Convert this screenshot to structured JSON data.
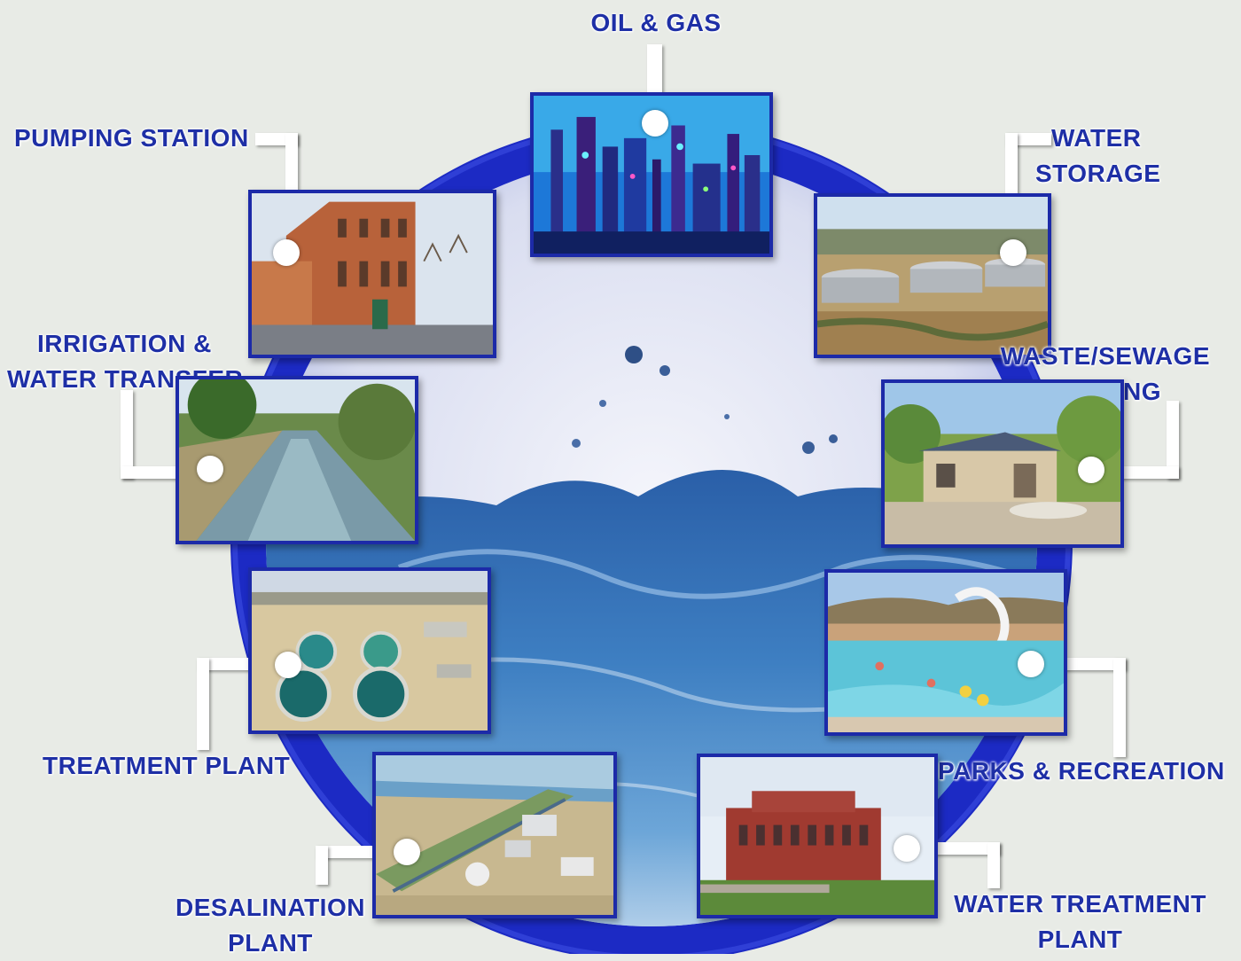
{
  "colors": {
    "background": "#e8ebe6",
    "ring": "#1c2ac4",
    "frame": "#1c2aa8",
    "label_text": "#1e2fa6",
    "connector": "#ffffff"
  },
  "nodes": [
    {
      "id": "oil-gas",
      "lines": [
        "OIL & GAS"
      ],
      "icon": "refinery-photo"
    },
    {
      "id": "water-storage",
      "lines": [
        "WATER",
        "STORAGE"
      ],
      "icon": "storage-tanks-photo"
    },
    {
      "id": "waste-sewage-pumping",
      "lines": [
        "WASTE/SEWAGE",
        "PUMPING"
      ],
      "icon": "pump-house-photo"
    },
    {
      "id": "parks-recreation",
      "lines": [
        "PARKS & RECREATION"
      ],
      "icon": "water-park-photo"
    },
    {
      "id": "water-treatment-plant",
      "lines": [
        "WATER TREATMENT",
        "PLANT"
      ],
      "icon": "brick-building-photo"
    },
    {
      "id": "desalination-plant",
      "lines": [
        "DESALINATION",
        "PLANT"
      ],
      "icon": "desalination-aerial-photo"
    },
    {
      "id": "treatment-plant",
      "lines": [
        "TREATMENT PLANT"
      ],
      "icon": "clarifier-tanks-photo"
    },
    {
      "id": "irrigation-water-transfer",
      "lines": [
        "IRRIGATION &",
        "WATER TRANSFER"
      ],
      "icon": "canal-photo"
    },
    {
      "id": "pumping-station",
      "lines": [
        "PUMPING STATION"
      ],
      "icon": "brick-pumping-station-photo"
    }
  ]
}
